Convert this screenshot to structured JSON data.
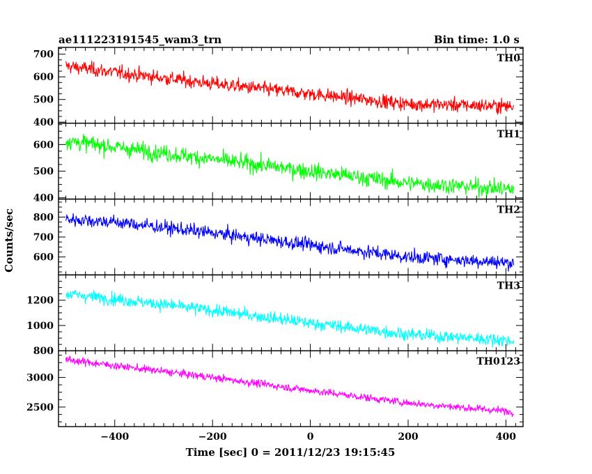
{
  "chart_data": {
    "type": "line",
    "title": "ae111223191545_wam3_trn",
    "bin_time": "Bin time: 1.0 s",
    "xlabel": "Time [sec] 0 = 2011/12/23 19:15:45",
    "ylabel": "Counts/sec",
    "xlim": [
      -515,
      435
    ],
    "x_start": -500,
    "x_end": 416,
    "x_step": 1,
    "xticks": [
      -400,
      -200,
      0,
      200,
      400
    ],
    "grid": false,
    "panels": [
      {
        "name": "TH0",
        "color": "#ff0000",
        "ylim": [
          395,
          730
        ],
        "yticks": [
          400,
          500,
          600,
          700
        ],
        "trend": {
          "x": [
            -500,
            -400,
            -200,
            0,
            200,
            416
          ],
          "y": [
            648,
            620,
            570,
            525,
            480,
            470
          ]
        },
        "noise_sd": 22
      },
      {
        "name": "TH1",
        "color": "#00ff00",
        "ylim": [
          395,
          680
        ],
        "yticks": [
          400,
          500,
          600
        ],
        "trend": {
          "x": [
            -500,
            -400,
            -200,
            0,
            200,
            416
          ],
          "y": [
            615,
            590,
            545,
            500,
            455,
            432
          ]
        },
        "noise_sd": 22
      },
      {
        "name": "TH2",
        "color": "#0000ff",
        "ylim": [
          510,
          890
        ],
        "yticks": [
          600,
          700,
          800
        ],
        "trend": {
          "x": [
            -500,
            -400,
            -200,
            0,
            200,
            416
          ],
          "y": [
            790,
            775,
            720,
            660,
            600,
            570
          ]
        },
        "noise_sd": 24
      },
      {
        "name": "TH3",
        "color": "#00ffff",
        "ylim": [
          800,
          1400
        ],
        "yticks": [
          800,
          1000,
          1200
        ],
        "trend": {
          "x": [
            -500,
            -400,
            -200,
            0,
            200,
            416
          ],
          "y": [
            1250,
            1210,
            1120,
            1020,
            930,
            880
          ]
        },
        "noise_sd": 35
      },
      {
        "name": "TH0123",
        "color": "#ff00ff",
        "ylim": [
          2170,
          3450
        ],
        "yticks": [
          2500,
          3000
        ],
        "trend": {
          "x": [
            -500,
            -400,
            -200,
            0,
            200,
            416
          ],
          "y": [
            3300,
            3200,
            3000,
            2780,
            2570,
            2420
          ]
        },
        "noise_sd": 45
      }
    ]
  }
}
